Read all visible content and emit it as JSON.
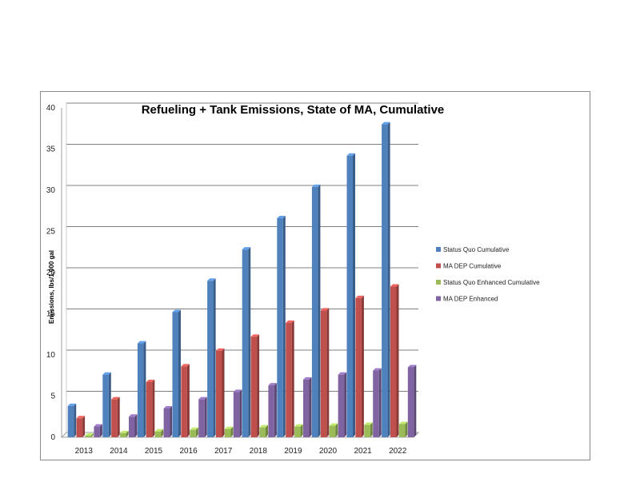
{
  "chart_data": {
    "type": "bar",
    "title": "Refueling + Tank Emissions, State of MA, Cumulative",
    "xlabel": "",
    "ylabel": "Emissions, lbs/1,000 gal",
    "categories": [
      "2013",
      "2014",
      "2015",
      "2016",
      "2017",
      "2018",
      "2019",
      "2020",
      "2021",
      "2022"
    ],
    "ylim": [
      0,
      40
    ],
    "yticks": [
      "0",
      "5",
      "10",
      "15",
      "20",
      "25",
      "30",
      "35",
      "40"
    ],
    "grid": true,
    "legend_position": "right",
    "series": [
      {
        "name": "Status Quo Cumulative",
        "color": "#4f81bd",
        "values": [
          3.8,
          7.6,
          11.4,
          15.2,
          19.0,
          22.8,
          26.6,
          30.4,
          34.2,
          38.0
        ]
      },
      {
        "name": "MA DEP Cumulative",
        "color": "#c0504d",
        "values": [
          2.3,
          4.6,
          6.7,
          8.6,
          10.5,
          12.2,
          13.9,
          15.4,
          16.9,
          18.3
        ]
      },
      {
        "name": "Status Quo Enhanced Cumulative",
        "color": "#9bbb59",
        "values": [
          0.2,
          0.5,
          0.7,
          0.9,
          1.0,
          1.2,
          1.3,
          1.4,
          1.5,
          1.6
        ]
      },
      {
        "name": "MA DEP Enhanced",
        "color": "#8064a2",
        "values": [
          1.3,
          2.5,
          3.5,
          4.6,
          5.5,
          6.3,
          7.0,
          7.6,
          8.1,
          8.5
        ]
      }
    ]
  }
}
